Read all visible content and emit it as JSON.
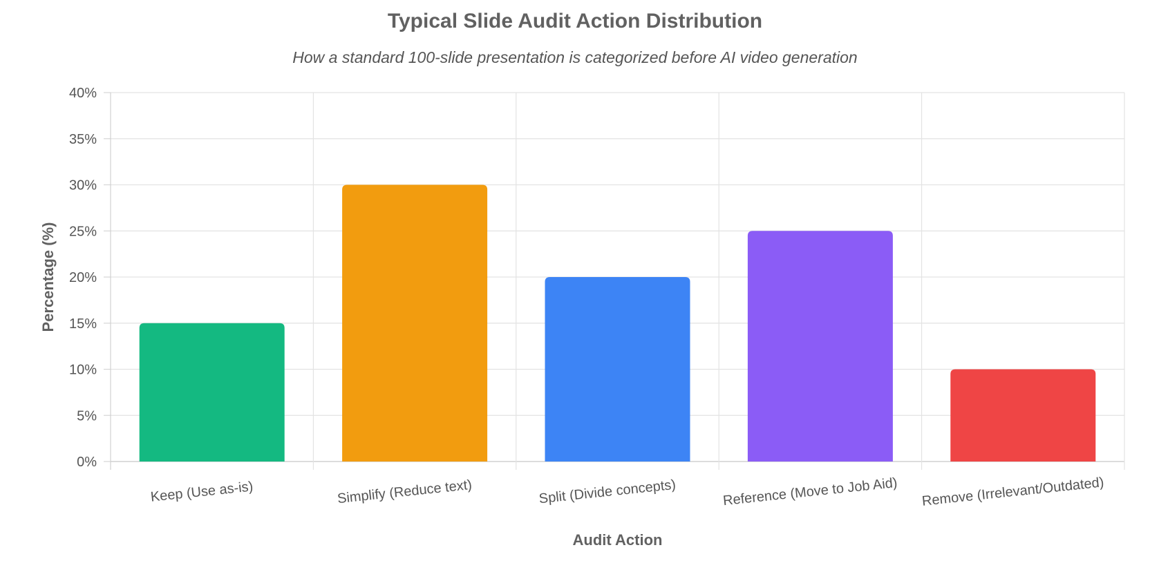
{
  "chart_data": {
    "type": "bar",
    "title": "Typical Slide Audit Action Distribution",
    "subtitle": "How a standard 100-slide presentation is categorized before AI video generation",
    "xlabel": "Audit Action",
    "ylabel": "Percentage (%)",
    "categories": [
      "Keep (Use as-is)",
      "Simplify (Reduce text)",
      "Split (Divide concepts)",
      "Reference (Move to Job Aid)",
      "Remove (Irrelevant/Outdated)"
    ],
    "values": [
      15,
      30,
      20,
      25,
      10
    ],
    "colors": [
      "#14b981",
      "#f29c0f",
      "#3d84f5",
      "#8b5cf6",
      "#ef4545"
    ],
    "ylim": [
      0,
      40
    ],
    "yticks": [
      "0%",
      "5%",
      "10%",
      "15%",
      "20%",
      "25%",
      "30%",
      "35%",
      "40%"
    ],
    "grid": true,
    "legend": "none"
  }
}
